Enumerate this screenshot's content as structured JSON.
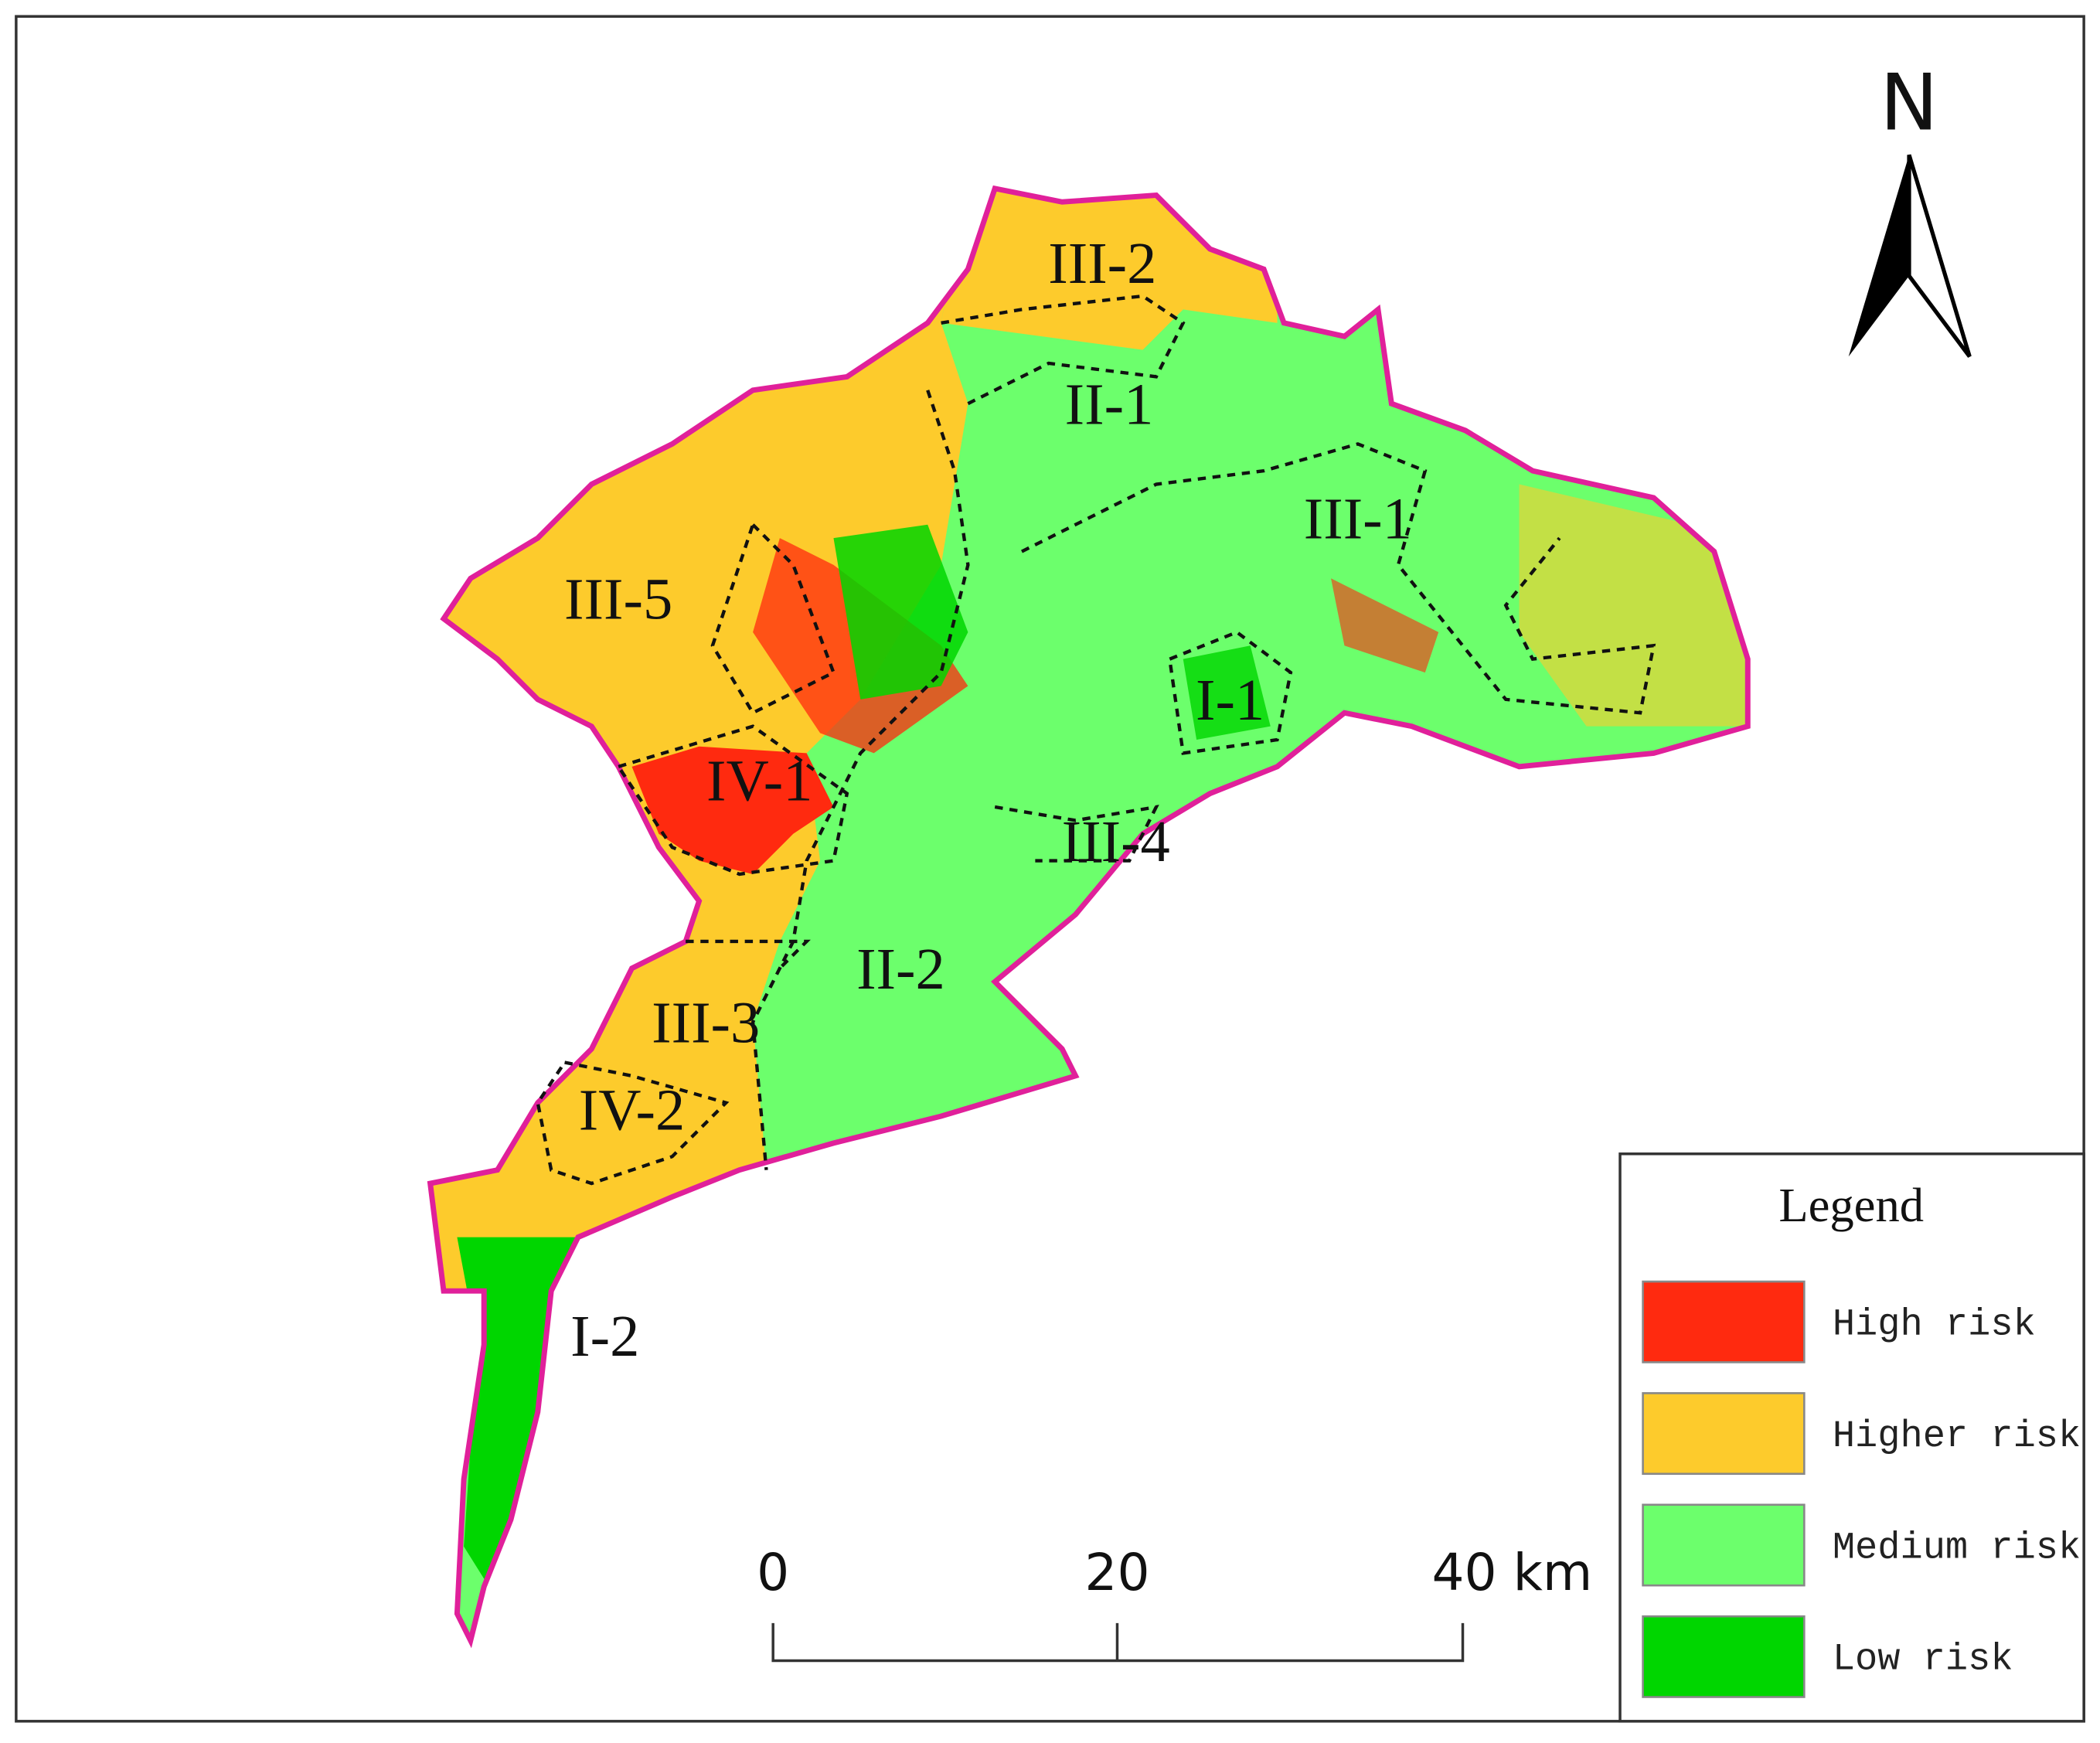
{
  "map": {
    "north": "N",
    "zones": [
      "III-2",
      "II-1",
      "III-1",
      "III-5",
      "I-1",
      "IV-1",
      "III-4",
      "II-2",
      "III-3",
      "IV-2",
      "I-2"
    ],
    "scale_bar": {
      "labels": [
        "0",
        "20",
        "40 km"
      ]
    },
    "legend": {
      "title": "Legend",
      "items": [
        {
          "label": "High risk",
          "color": "#ff2a0f"
        },
        {
          "label": "Higher risk",
          "color": "#fdcb2c"
        },
        {
          "label": "Medium risk",
          "color": "#6cff6c"
        },
        {
          "label": "Low risk",
          "color": "#00d600"
        }
      ]
    }
  }
}
